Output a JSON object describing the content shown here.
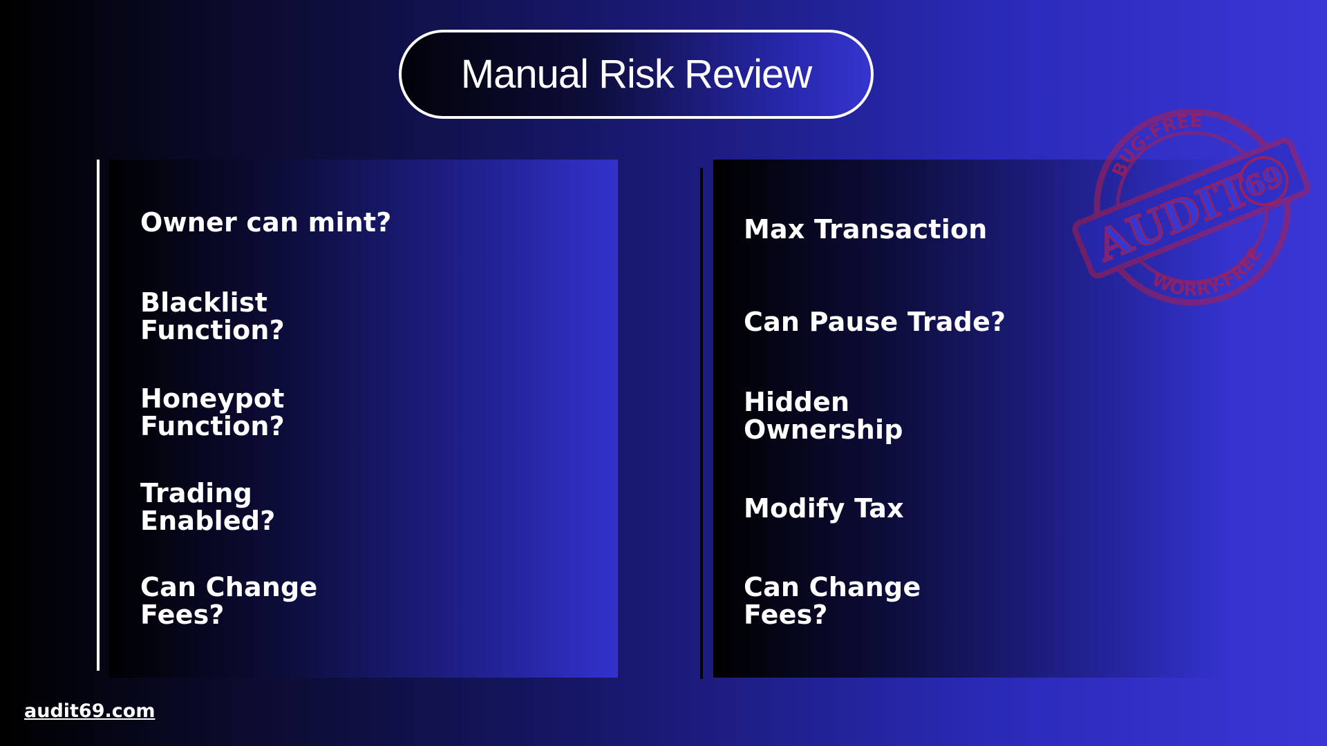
{
  "title": "Manual Risk Review",
  "left_column": {
    "items": [
      "Owner can mint?",
      "Blacklist\nFunction?",
      "Honeypot\nFunction?",
      "Trading\nEnabled?",
      "Can Change\nFees?"
    ]
  },
  "right_column": {
    "items": [
      "Max Transaction",
      "Can Pause Trade?",
      "Hidden\nOwnership",
      "Modify Tax",
      "Can Change\nFees?"
    ]
  },
  "stamp": {
    "top_text": "BUG-FREE",
    "main_text": "AUDIT",
    "number": "69",
    "bottom_text": "WORRY-FREE",
    "color": "#b01e4a"
  },
  "footer": {
    "link": "audit69.com"
  }
}
